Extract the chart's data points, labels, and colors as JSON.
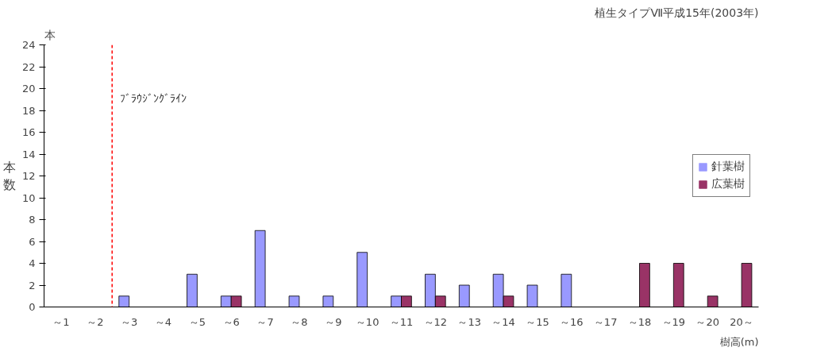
{
  "chart_data": {
    "type": "bar",
    "title": "植生タイプⅦ平成15年(2003年)",
    "ylabel": "本数",
    "xlabel": "樹高(m)",
    "annotations": [
      "本"
    ],
    "ref_lines": [
      {
        "axis": "x",
        "value": "～3",
        "label": "ﾌﾞﾗｳｼﾞﾝｸﾞﾗｲﾝ",
        "color": "#ff0000",
        "line_style": "dashed"
      }
    ],
    "categories": [
      "～1",
      "～2",
      "～3",
      "～4",
      "～5",
      "～6",
      "～7",
      "～8",
      "～9",
      "～10",
      "～11",
      "～12",
      "～13",
      "～14",
      "～15",
      "～16",
      "～17",
      "～18",
      "～19",
      "～20",
      "20～"
    ],
    "series": [
      {
        "name": "針葉樹",
        "color": "#9999ff",
        "values": [
          0,
          0,
          1,
          0,
          3,
          1,
          7,
          1,
          1,
          5,
          1,
          3,
          2,
          3,
          2,
          3,
          0,
          0,
          0,
          0,
          0
        ]
      },
      {
        "name": "広葉樹",
        "color": "#993366",
        "values": [
          0,
          0,
          0,
          0,
          0,
          1,
          0,
          0,
          0,
          0,
          1,
          1,
          0,
          1,
          0,
          0,
          0,
          4,
          4,
          1,
          4
        ]
      }
    ],
    "ylim": [
      0,
      24
    ],
    "yticks": [
      0,
      2,
      4,
      6,
      8,
      10,
      12,
      14,
      16,
      18,
      20,
      22,
      24
    ],
    "grid": false,
    "legend": "right"
  }
}
